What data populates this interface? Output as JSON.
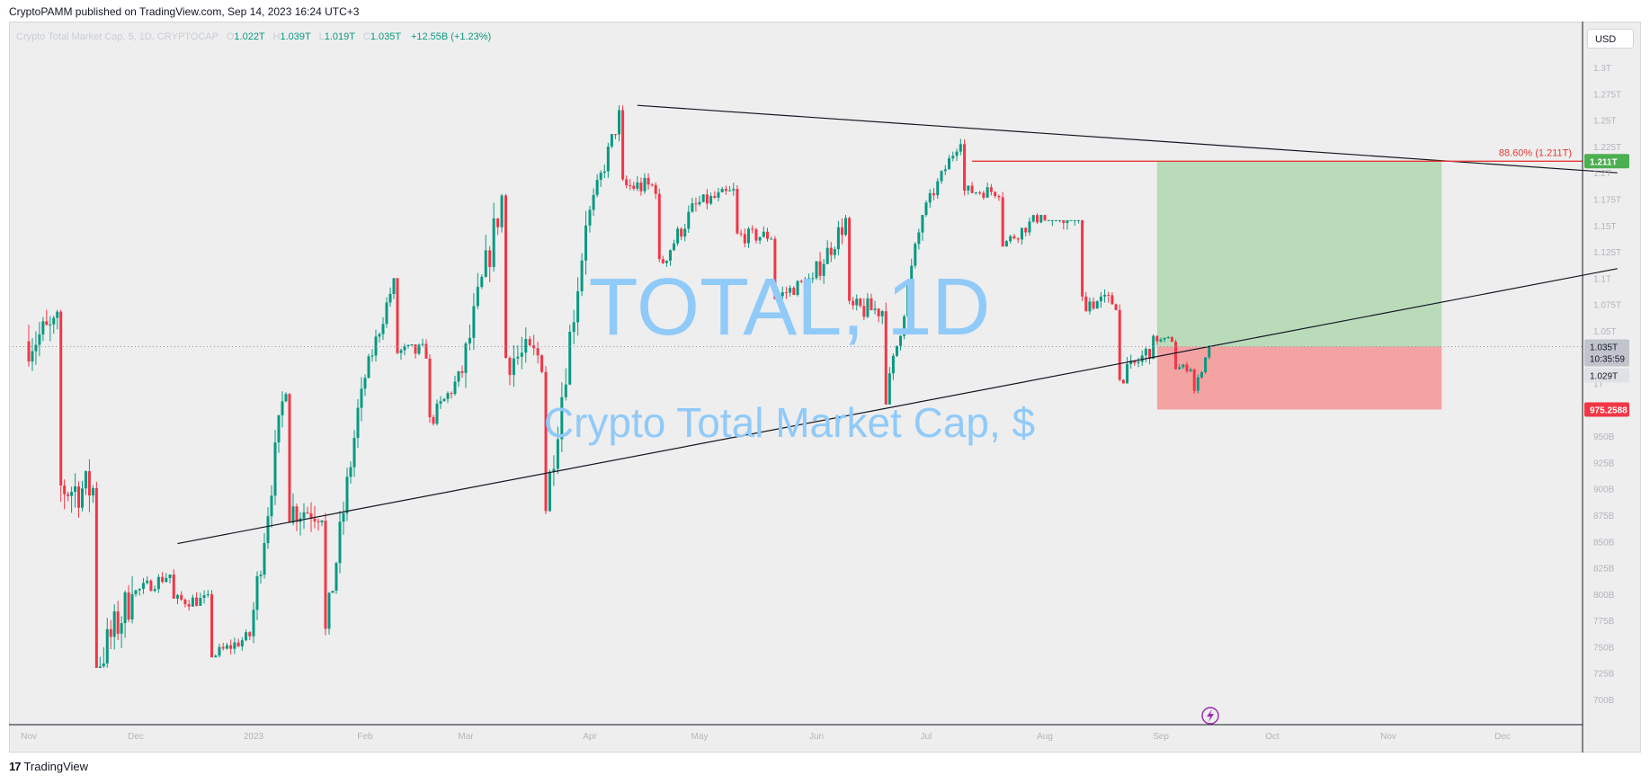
{
  "header": {
    "attribution": "CryptoPAMM published on TradingView.com, Sep 14, 2023 16:24 UTC+3"
  },
  "symbol": {
    "name": "Crypto Total Market Cap, 5, 1D, CRYPTOCAP",
    "open_label": "O",
    "open": "1.022T",
    "high_label": "H",
    "high": "1.039T",
    "low_label": "L",
    "low": "1.019T",
    "close_label": "C",
    "close": "1.035T",
    "change": "+12.55B (+1.23%)"
  },
  "currency_button": "USD",
  "watermark": {
    "ticker": "TOTAL, 1D",
    "description": "Crypto Total Market Cap, $"
  },
  "footer": {
    "brand": "TradingView",
    "logo_text": "17"
  },
  "colors": {
    "up": "#089981",
    "down": "#f23645",
    "target_zone": "#b9dbba",
    "stop_zone": "#f4a3a3",
    "watermark": "#90caf9",
    "level_line": "#e53935"
  },
  "chart_data": {
    "type": "candlestick",
    "timeframe": "1D",
    "x_axis": {
      "tick_labels": [
        "Nov",
        "Dec",
        "2023",
        "Feb",
        "Mar",
        "Apr",
        "May",
        "Jun",
        "Jul",
        "Aug",
        "Sep",
        "Oct",
        "Nov",
        "Dec"
      ]
    },
    "y_axis": {
      "unit": "USD",
      "tick_labels": [
        "700B",
        "725B",
        "750B",
        "775B",
        "800B",
        "825B",
        "850B",
        "875B",
        "900B",
        "925B",
        "950B",
        "975B",
        "1T",
        "1.025T",
        "1.05T",
        "1.075T",
        "1.1T",
        "1.125T",
        "1.15T",
        "1.175T",
        "1.2T",
        "1.225T",
        "1.25T",
        "1.275T",
        "1.3T"
      ],
      "ylim_billions": [
        680,
        1305
      ]
    },
    "price_labels": {
      "last_price": "1.035T",
      "countdown": "10:35:59",
      "secondary": "1.029T",
      "target": "1.211T",
      "stop": "975.2588"
    },
    "fib_annotation": {
      "label": "88.60% (1.211T)",
      "value_billions": 1211,
      "start_date": "2023-07-13"
    },
    "position": {
      "type": "long",
      "start_date": "2023-08-31",
      "end_date": "2023-11-15",
      "entry_billions": 1035,
      "target_billions": 1211,
      "stop_billions": 975.26
    },
    "trendlines": [
      {
        "name": "resistance",
        "from": {
          "date": "2023-04-14",
          "billions": 1264
        },
        "to": {
          "date": "2023-12-31",
          "billions": 1200
        }
      },
      {
        "name": "support",
        "from": {
          "date": "2022-12-12",
          "billions": 848
        },
        "to": {
          "date": "2023-12-31",
          "billions": 1109
        }
      }
    ],
    "candles_monthly_approx": [
      {
        "month": "2022-11",
        "open": 1040,
        "high": 1070,
        "low": 730,
        "close": 800
      },
      {
        "month": "2022-12",
        "open": 800,
        "high": 848,
        "low": 740,
        "close": 760
      },
      {
        "month": "2023-01",
        "open": 760,
        "high": 1010,
        "low": 750,
        "close": 995
      },
      {
        "month": "2023-02",
        "open": 995,
        "high": 1100,
        "low": 960,
        "close": 1010
      },
      {
        "month": "2023-03",
        "open": 1010,
        "high": 1180,
        "low": 870,
        "close": 1150
      },
      {
        "month": "2023-04",
        "open": 1150,
        "high": 1264,
        "low": 1110,
        "close": 1170
      },
      {
        "month": "2023-05",
        "open": 1170,
        "high": 1200,
        "low": 1080,
        "close": 1100
      },
      {
        "month": "2023-06",
        "open": 1100,
        "high": 1160,
        "low": 980,
        "close": 1160
      },
      {
        "month": "2023-07",
        "open": 1160,
        "high": 1235,
        "low": 1130,
        "close": 1160
      },
      {
        "month": "2023-08",
        "open": 1160,
        "high": 1155,
        "low": 1000,
        "close": 1040
      },
      {
        "month": "2023-09",
        "open": 1040,
        "high": 1045,
        "low": 985,
        "close": 1035
      }
    ]
  }
}
